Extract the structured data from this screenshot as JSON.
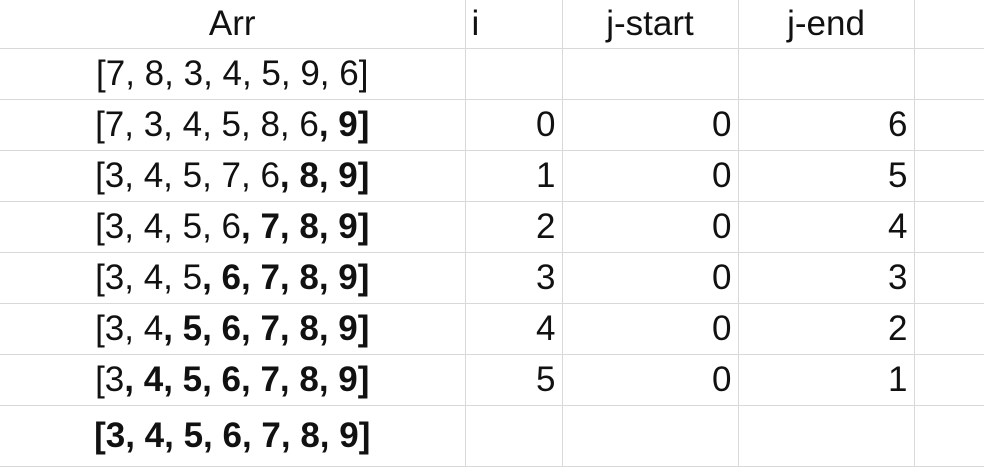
{
  "headers": {
    "arr": "Arr",
    "i": "i",
    "j_start": "j-start",
    "j_end": "j-end"
  },
  "rows": [
    {
      "arr_normal": "[7, 8, 3, 4, 5, 9, 6]",
      "arr_bold": "",
      "i": "",
      "j_start": "",
      "j_end": ""
    },
    {
      "arr_normal": "[7, 3, 4, 5, 8, 6",
      "arr_bold": ", 9]",
      "i": "0",
      "j_start": "0",
      "j_end": "6"
    },
    {
      "arr_normal": "[3, 4, 5, 7, 6",
      "arr_bold": ", 8, 9]",
      "i": "1",
      "j_start": "0",
      "j_end": "5"
    },
    {
      "arr_normal": "[3, 4, 5, 6",
      "arr_bold": ", 7, 8, 9]",
      "i": "2",
      "j_start": "0",
      "j_end": "4"
    },
    {
      "arr_normal": "[3, 4, 5",
      "arr_bold": ", 6, 7, 8, 9]",
      "i": "3",
      "j_start": "0",
      "j_end": "3"
    },
    {
      "arr_normal": "[3, 4",
      "arr_bold": ", 5, 6, 7, 8, 9]",
      "i": "4",
      "j_start": "0",
      "j_end": "2"
    },
    {
      "arr_normal": "[3",
      "arr_bold": ", 4, 5, 6, 7, 8, 9]",
      "i": "5",
      "j_start": "0",
      "j_end": "1"
    },
    {
      "arr_normal": "",
      "arr_bold": "[3, 4, 5, 6, 7, 8, 9]",
      "i": "",
      "j_start": "",
      "j_end": ""
    }
  ]
}
